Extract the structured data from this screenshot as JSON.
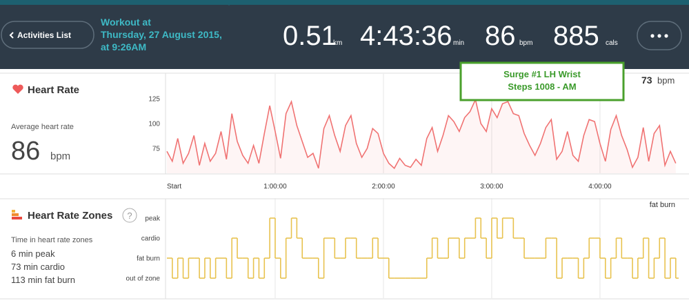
{
  "header": {
    "back_button": "Activities List",
    "workout_title": "Workout at",
    "workout_date": "Thursday, 27 August 2015,",
    "workout_time": "at 9:26AM",
    "stats": [
      {
        "value": "0.51",
        "unit": "km"
      },
      {
        "value": "4:43:36",
        "unit": "min"
      },
      {
        "value": "86",
        "unit": "bpm"
      },
      {
        "value": "885",
        "unit": "cals"
      }
    ]
  },
  "heart_rate_panel": {
    "title": "Heart Rate",
    "average_label": "Average heart rate",
    "average_value": "86",
    "average_unit": "bpm",
    "current_value": "73",
    "current_unit": "bpm",
    "annotation": [
      "Surge #1 LH Wrist",
      "Steps 1008 - AM"
    ]
  },
  "zones_panel": {
    "title": "Heart Rate Zones",
    "help": "?",
    "summary_label": "Time in heart rate zones",
    "summary": [
      "6 min peak",
      "73 min cardio",
      "113 min fat burn"
    ],
    "current_zone": "fat burn"
  },
  "chart_data": [
    {
      "type": "line",
      "xlim": [
        0,
        283.6
      ],
      "xticks": [
        {
          "value": 0,
          "label": "Start"
        },
        {
          "value": 60,
          "label": "1:00:00"
        },
        {
          "value": 120,
          "label": "2:00:00"
        },
        {
          "value": 180,
          "label": "3:00:00"
        },
        {
          "value": 240,
          "label": "4:00:00"
        }
      ],
      "ylim": [
        50,
        150
      ],
      "yticks": [
        75,
        100,
        125
      ],
      "grid": true,
      "series": [
        {
          "color": "#f07272",
          "x": [
            0,
            3,
            6,
            9,
            12,
            15,
            18,
            21,
            24,
            27,
            30,
            33,
            36,
            39,
            42,
            45,
            48,
            51,
            54,
            57,
            60,
            63,
            66,
            69,
            72,
            75,
            78,
            81,
            84,
            87,
            90,
            93,
            96,
            99,
            102,
            105,
            108,
            111,
            114,
            117,
            120,
            123,
            126,
            129,
            132,
            135,
            138,
            141,
            144,
            147,
            150,
            153,
            156,
            159,
            162,
            165,
            168,
            171,
            174,
            177,
            180,
            183,
            186,
            189,
            192,
            195,
            198,
            201,
            204,
            207,
            210,
            213,
            216,
            219,
            222,
            225,
            228,
            231,
            234,
            237,
            240,
            243,
            246,
            249,
            252,
            255,
            258,
            261,
            264,
            267,
            270,
            273,
            276,
            279,
            282
          ],
          "values": [
            72,
            62,
            85,
            60,
            70,
            88,
            58,
            80,
            62,
            70,
            92,
            64,
            110,
            82,
            68,
            60,
            78,
            60,
            90,
            118,
            92,
            65,
            110,
            122,
            98,
            82,
            66,
            70,
            55,
            95,
            108,
            88,
            72,
            98,
            108,
            80,
            66,
            75,
            95,
            90,
            70,
            60,
            55,
            65,
            58,
            56,
            64,
            58,
            85,
            96,
            72,
            88,
            108,
            102,
            92,
            106,
            112,
            124,
            100,
            92,
            115,
            106,
            120,
            122,
            110,
            108,
            90,
            78,
            68,
            80,
            96,
            104,
            64,
            72,
            92,
            68,
            62,
            88,
            104,
            102,
            80,
            62,
            94,
            108,
            88,
            74,
            56,
            66,
            96,
            62,
            90,
            98,
            58,
            72,
            60
          ]
        }
      ]
    },
    {
      "type": "step",
      "xlim": [
        0,
        283.6
      ],
      "xticks": [
        0,
        60,
        120,
        180,
        240
      ],
      "ylim": [
        -1,
        4
      ],
      "yticks": [
        {
          "value": 3,
          "label": "peak"
        },
        {
          "value": 2,
          "label": "cardio"
        },
        {
          "value": 1,
          "label": "fat burn"
        },
        {
          "value": 0,
          "label": "out of zone"
        }
      ],
      "grid": true,
      "series": [
        {
          "color": "#e8c24e",
          "x": [
            0,
            3,
            6,
            9,
            12,
            15,
            18,
            21,
            24,
            27,
            30,
            33,
            36,
            39,
            42,
            45,
            48,
            51,
            54,
            57,
            60,
            63,
            66,
            69,
            72,
            75,
            78,
            81,
            84,
            87,
            90,
            93,
            96,
            99,
            102,
            105,
            108,
            111,
            114,
            117,
            120,
            123,
            126,
            129,
            132,
            135,
            138,
            141,
            144,
            147,
            150,
            153,
            156,
            159,
            162,
            165,
            168,
            171,
            174,
            177,
            180,
            183,
            186,
            189,
            192,
            195,
            198,
            201,
            204,
            207,
            210,
            213,
            216,
            219,
            222,
            225,
            228,
            231,
            234,
            237,
            240,
            243,
            246,
            249,
            252,
            255,
            258,
            261,
            264,
            267,
            270,
            273,
            276,
            279,
            282
          ],
          "values": [
            1,
            0,
            1,
            0,
            1,
            1,
            0,
            1,
            0,
            1,
            1,
            0,
            2,
            1,
            1,
            0,
            1,
            0,
            1,
            3,
            1,
            0,
            2,
            3,
            2,
            1,
            1,
            1,
            0,
            2,
            2,
            1,
            1,
            2,
            2,
            1,
            1,
            1,
            2,
            1,
            1,
            0,
            0,
            0,
            0,
            0,
            0,
            0,
            1,
            2,
            1,
            1,
            2,
            2,
            1,
            2,
            2,
            3,
            2,
            1,
            3,
            2,
            3,
            3,
            2,
            2,
            1,
            1,
            1,
            1,
            2,
            2,
            0,
            1,
            1,
            1,
            0,
            1,
            2,
            2,
            1,
            0,
            1,
            2,
            1,
            1,
            0,
            1,
            2,
            0,
            1,
            2,
            0,
            1,
            0
          ]
        }
      ]
    }
  ]
}
